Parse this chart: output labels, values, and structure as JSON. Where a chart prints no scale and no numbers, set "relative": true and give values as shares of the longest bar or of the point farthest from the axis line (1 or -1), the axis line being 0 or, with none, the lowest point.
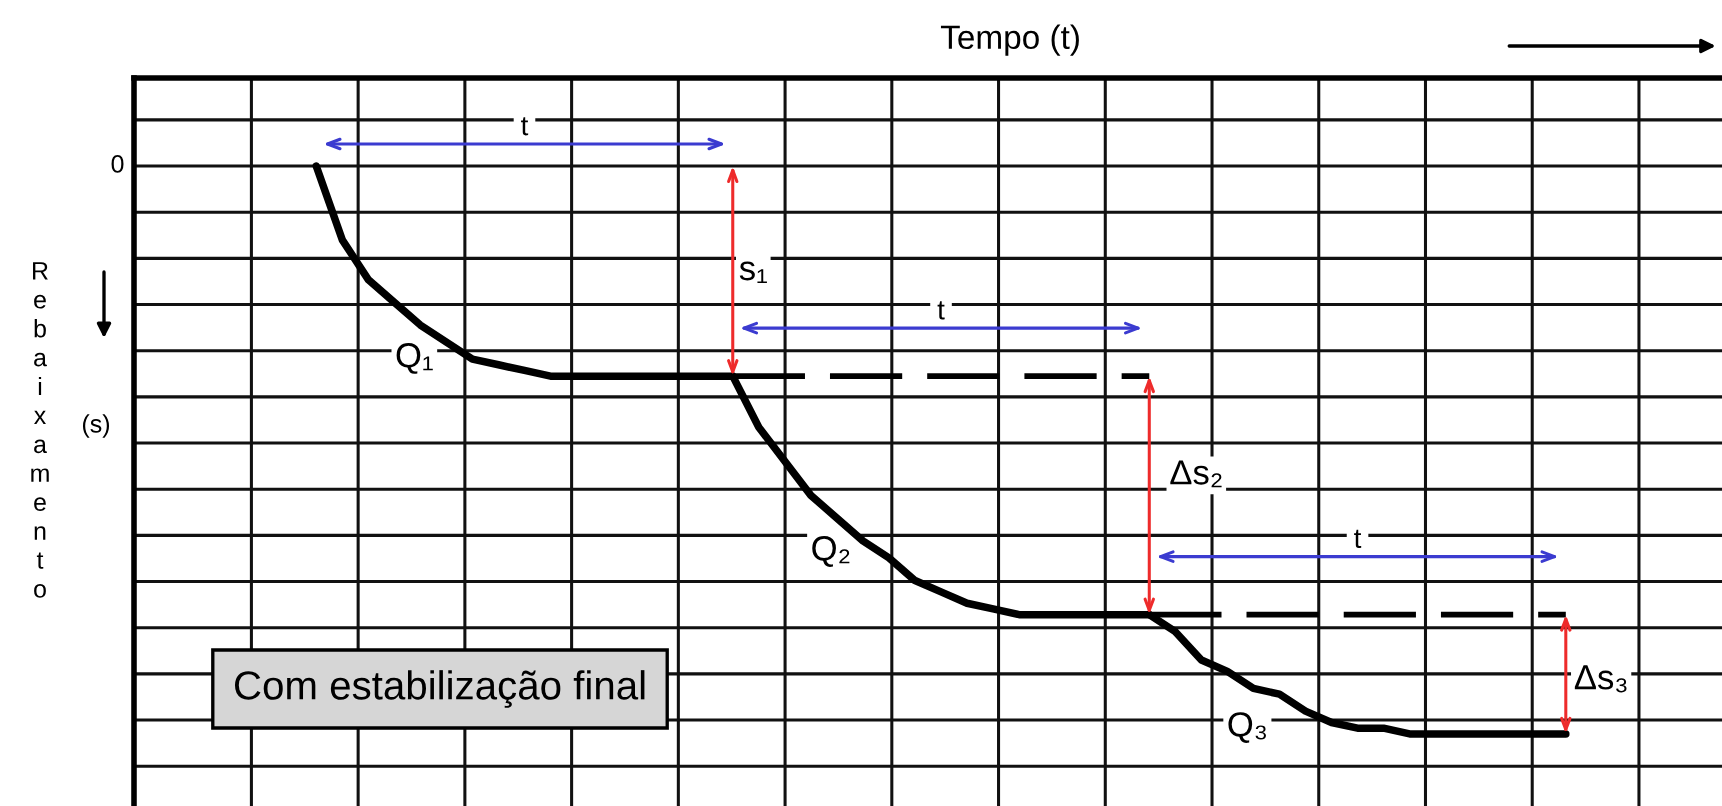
{
  "chart_data": {
    "type": "line",
    "xlabel": "Tempo (t)",
    "ylabel": "Rebaixamento (s)",
    "relative": true,
    "grid": true,
    "categories": [
      null,
      null,
      null,
      null,
      null,
      null,
      null,
      null,
      null,
      null,
      null,
      null,
      null,
      null,
      null,
      null,
      null,
      null,
      null,
      null,
      null,
      null,
      null,
      null,
      null,
      null,
      null,
      null,
      null,
      null,
      null,
      null,
      null,
      null,
      null,
      null,
      null,
      null,
      null,
      null,
      null,
      null,
      null,
      null,
      null,
      null,
      null,
      null,
      null
    ],
    "series": [
      {
        "name": "Q₁",
        "color": "#000000",
        "values": [
          0,
          -0.13,
          -0.2,
          -0.24,
          -0.28,
          -0.31,
          -0.34,
          -0.35,
          -0.36,
          -0.37,
          -0.37,
          -0.37,
          -0.37,
          -0.37,
          -0.37,
          -0.37,
          -0.37,
          null,
          null,
          null,
          null,
          null,
          null,
          null,
          null,
          null,
          null,
          null,
          null,
          null,
          null,
          null,
          null,
          null,
          null,
          null,
          null,
          null,
          null,
          null,
          null,
          null,
          null,
          null,
          null,
          null,
          null,
          null,
          null
        ]
      },
      {
        "name": "Q₂",
        "color": "#000000",
        "values": [
          null,
          null,
          null,
          null,
          null,
          null,
          null,
          null,
          null,
          null,
          null,
          null,
          null,
          null,
          null,
          null,
          -0.37,
          -0.46,
          -0.52,
          -0.58,
          -0.62,
          -0.66,
          -0.69,
          -0.73,
          -0.75,
          -0.77,
          -0.78,
          -0.79,
          -0.79,
          -0.79,
          -0.79,
          -0.79,
          -0.79,
          null,
          null,
          null,
          null,
          null,
          null,
          null,
          null,
          null,
          null,
          null,
          null,
          null,
          null,
          null,
          null
        ]
      },
      {
        "name": "Q₃",
        "color": "#000000",
        "values": [
          null,
          null,
          null,
          null,
          null,
          null,
          null,
          null,
          null,
          null,
          null,
          null,
          null,
          null,
          null,
          null,
          null,
          null,
          null,
          null,
          null,
          null,
          null,
          null,
          null,
          null,
          null,
          null,
          null,
          null,
          null,
          null,
          -0.79,
          -0.82,
          -0.87,
          -0.89,
          -0.92,
          -0.93,
          -0.96,
          -0.98,
          -0.99,
          -0.99,
          -1,
          -1,
          -1,
          -1,
          -1,
          -1,
          -1
        ]
      },
      {
        "color": "#000000",
        "line_style": "dashed",
        "values": [
          null,
          null,
          null,
          null,
          null,
          null,
          null,
          null,
          null,
          null,
          null,
          null,
          null,
          null,
          null,
          null,
          -0.37,
          -0.37,
          -0.37,
          -0.37,
          -0.37,
          -0.37,
          -0.37,
          -0.37,
          -0.37,
          -0.37,
          -0.37,
          -0.37,
          -0.37,
          -0.37,
          -0.37,
          -0.37,
          -0.37,
          null,
          null,
          null,
          null,
          null,
          null,
          null,
          null,
          null,
          null,
          null,
          null,
          null,
          null,
          null,
          null
        ]
      },
      {
        "color": "#000000",
        "line_style": "dashed",
        "values": [
          null,
          null,
          null,
          null,
          null,
          null,
          null,
          null,
          null,
          null,
          null,
          null,
          null,
          null,
          null,
          null,
          null,
          null,
          null,
          null,
          null,
          null,
          null,
          null,
          null,
          null,
          null,
          null,
          null,
          null,
          null,
          null,
          -0.79,
          -0.79,
          -0.79,
          -0.79,
          -0.79,
          -0.79,
          -0.79,
          -0.79,
          -0.79,
          -0.79,
          -0.79,
          -0.79,
          -0.79,
          -0.79,
          -0.79,
          -0.79,
          -0.79
        ]
      }
    ],
    "annotations": [
      "0",
      "t",
      "s₁",
      "t",
      "Δs₂",
      "t",
      "Δs₃",
      "Com estabilização final"
    ]
  }
}
